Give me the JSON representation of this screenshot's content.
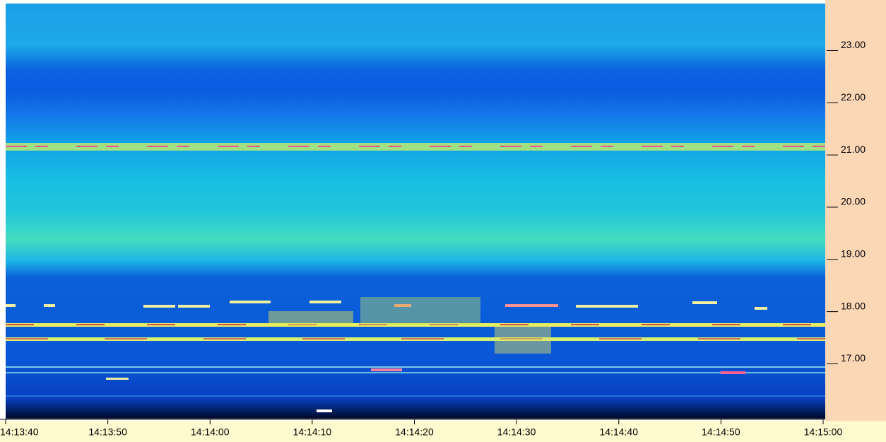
{
  "chart_data": {
    "type": "spectrogram",
    "ylim": [
      15.95,
      23.9
    ],
    "yticks": [
      {
        "value": 17,
        "label": "17.00"
      },
      {
        "value": 18,
        "label": "18.00"
      },
      {
        "value": 19,
        "label": "19.00"
      },
      {
        "value": 20,
        "label": "20.00"
      },
      {
        "value": 21,
        "label": "21.00"
      },
      {
        "value": 22,
        "label": "22.00"
      },
      {
        "value": 23,
        "label": "23.00"
      }
    ],
    "x_tick_labels": [
      "14:13:40",
      "14:13:50",
      "14:14:00",
      "14:14:10",
      "14:14:20",
      "14:14:30",
      "14:14:40",
      "14:14:50",
      "14:15:00"
    ]
  }
}
